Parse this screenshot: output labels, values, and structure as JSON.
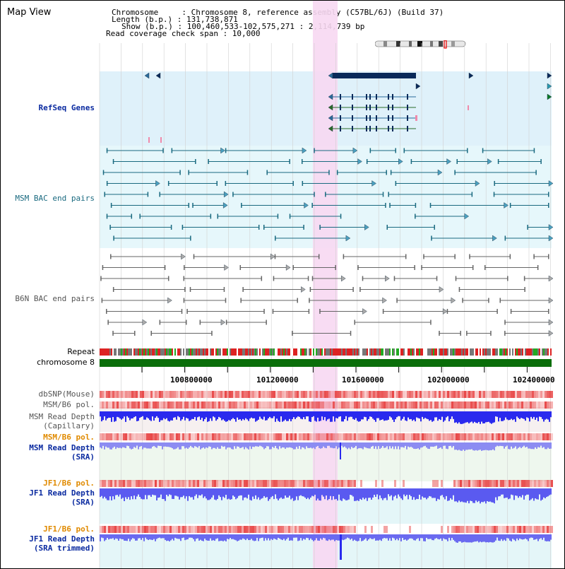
{
  "window": {
    "title": "Map View"
  },
  "info": {
    "chromosome": "Chromosome     : Chromosome 8, reference assembly (C57BL/6J) (Build 37)",
    "length": "Length (b.p.) : 131,738,871",
    "show": "Show (b.p.) : 100,460,533-102,575,271 : 2,114,739 bp",
    "coverage": "Read coverage check span : 10,000"
  },
  "tracks": {
    "refseq": "RefSeq Genes",
    "msm_bac": "MSM BAC end pairs",
    "b6n_bac": "B6N BAC end pairs",
    "repeat": "Repeat",
    "chromosome": "chromosome 8",
    "dbsnp": "dbSNP(Mouse)",
    "msm_b6_pol_1": "MSM/B6 pol.",
    "msm_depth_cap_1": "MSM Read Depth",
    "msm_depth_cap_2": "(Capillary)",
    "msm_b6_pol_2": "MSM/B6 pol.",
    "msm_depth_sra_1": "MSM Read Depth",
    "msm_depth_sra_2": "(SRA)",
    "jf1_b6_pol_1": "JF1/B6 pol.",
    "jf1_depth_sra_1": "JF1 Read Depth",
    "jf1_depth_sra_2": "(SRA)",
    "jf1_b6_pol_2": "JF1/B6 pol.",
    "jf1_depth_trim_1": "JF1 Read Depth",
    "jf1_depth_trim_2": "(SRA trimmed)"
  },
  "axis": {
    "ticks": [
      "100800000",
      "101200000",
      "101600000",
      "102000000",
      "102400000"
    ]
  },
  "colors": {
    "refseq_bg": "#dff1fa",
    "msm_bg": "#e6f7fb",
    "highlight": "#f7d8f2",
    "gene": "#0a2a5a",
    "chromosome_bar": "#0a6e0a",
    "depth_blue": "#2a2aee",
    "depth_light": "#8c8cf2",
    "snp_red": "#e84848"
  }
}
